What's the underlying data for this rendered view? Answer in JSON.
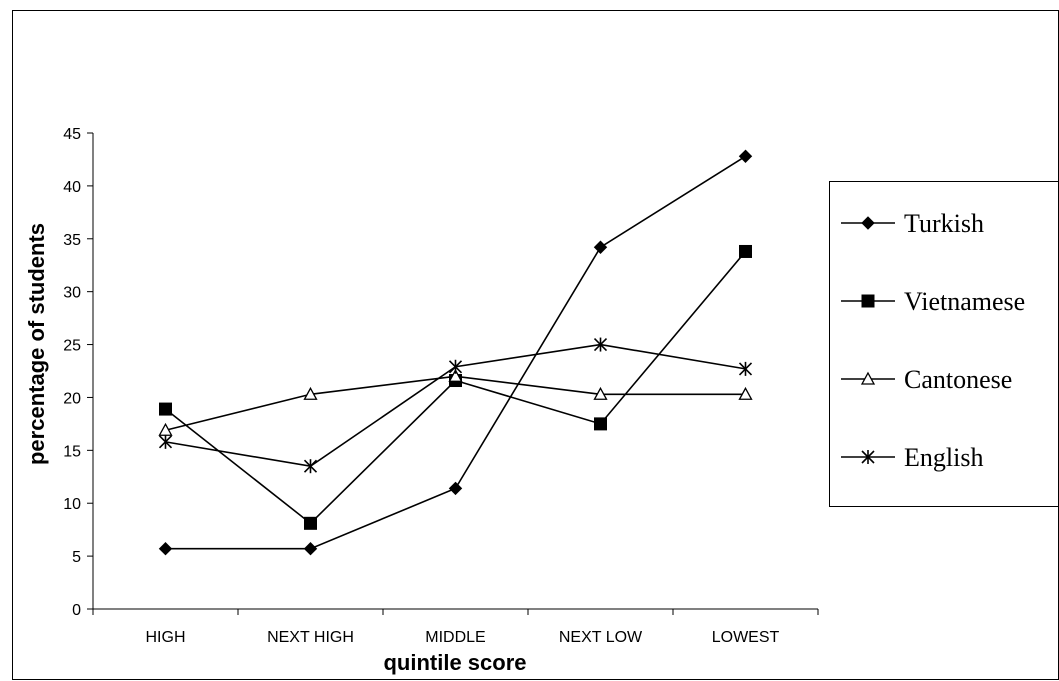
{
  "chart_data": {
    "type": "line",
    "title": "",
    "xlabel": "quintile score",
    "ylabel": "percentage of students",
    "categories": [
      "HIGH",
      "NEXT HIGH",
      "MIDDLE",
      "NEXT LOW",
      "LOWEST"
    ],
    "ylim": [
      0,
      45
    ],
    "yticks": [
      0,
      5,
      10,
      15,
      20,
      25,
      30,
      35,
      40,
      45
    ],
    "grid": false,
    "legend_position": "right",
    "series": [
      {
        "name": "Turkish",
        "marker": "diamond",
        "values": [
          5.7,
          5.7,
          11.4,
          34.2,
          42.8
        ]
      },
      {
        "name": "Vietnamese",
        "marker": "square",
        "values": [
          18.9,
          8.1,
          21.6,
          17.5,
          33.8
        ]
      },
      {
        "name": "Cantonese",
        "marker": "triangle",
        "values": [
          16.9,
          20.3,
          22.0,
          20.3,
          20.3
        ]
      },
      {
        "name": "English",
        "marker": "asterisk",
        "values": [
          15.8,
          13.5,
          22.9,
          25.0,
          22.7
        ]
      }
    ]
  }
}
